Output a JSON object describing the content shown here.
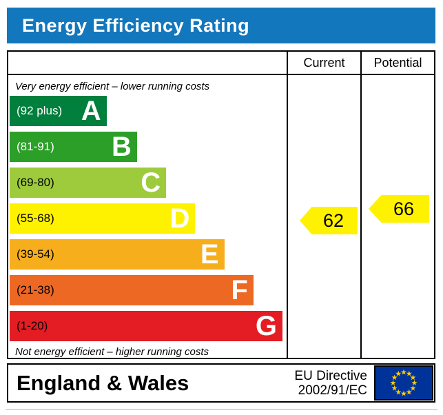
{
  "header": {
    "title": "Energy Efficiency Rating",
    "bg": "#1377bd",
    "text_color": "#ffffff"
  },
  "table": {
    "columns": {
      "current": "Current",
      "potential": "Potential"
    }
  },
  "chart_data": {
    "type": "bar",
    "title": "Energy Efficiency Rating",
    "top_note": "Very energy efficient – lower running costs",
    "bottom_note": "Not energy efficient – higher running costs",
    "bands": [
      {
        "letter": "A",
        "range": "(92 plus)",
        "color": "#007f3d",
        "label_color": "#ffffff",
        "width_pct": 35
      },
      {
        "letter": "B",
        "range": "(81-91)",
        "color": "#2c9f29",
        "label_color": "#ffffff",
        "width_pct": 46
      },
      {
        "letter": "C",
        "range": "(69-80)",
        "color": "#9dcb3c",
        "label_color": "#000000",
        "width_pct": 56.5
      },
      {
        "letter": "D",
        "range": "(55-68)",
        "color": "#fff200",
        "label_color": "#000000",
        "width_pct": 67
      },
      {
        "letter": "E",
        "range": "(39-54)",
        "color": "#f7ae1d",
        "label_color": "#000000",
        "width_pct": 77.5
      },
      {
        "letter": "F",
        "range": "(21-38)",
        "color": "#ed6823",
        "label_color": "#000000",
        "width_pct": 88
      },
      {
        "letter": "G",
        "range": "(1-20)",
        "color": "#e31d23",
        "label_color": "#000000",
        "width_pct": 98.5
      }
    ],
    "current": {
      "label": "Current",
      "value": "62",
      "band": "D",
      "arrow_color": "#fff200"
    },
    "potential": {
      "label": "Potential",
      "value": "66",
      "band": "D",
      "arrow_color": "#fff200"
    }
  },
  "footer": {
    "region": "England & Wales",
    "directive": {
      "line1": "EU Directive",
      "line2": "2002/91/EC"
    },
    "eu_flag": {
      "bg": "#003399",
      "star_color": "#ffcc00"
    }
  }
}
